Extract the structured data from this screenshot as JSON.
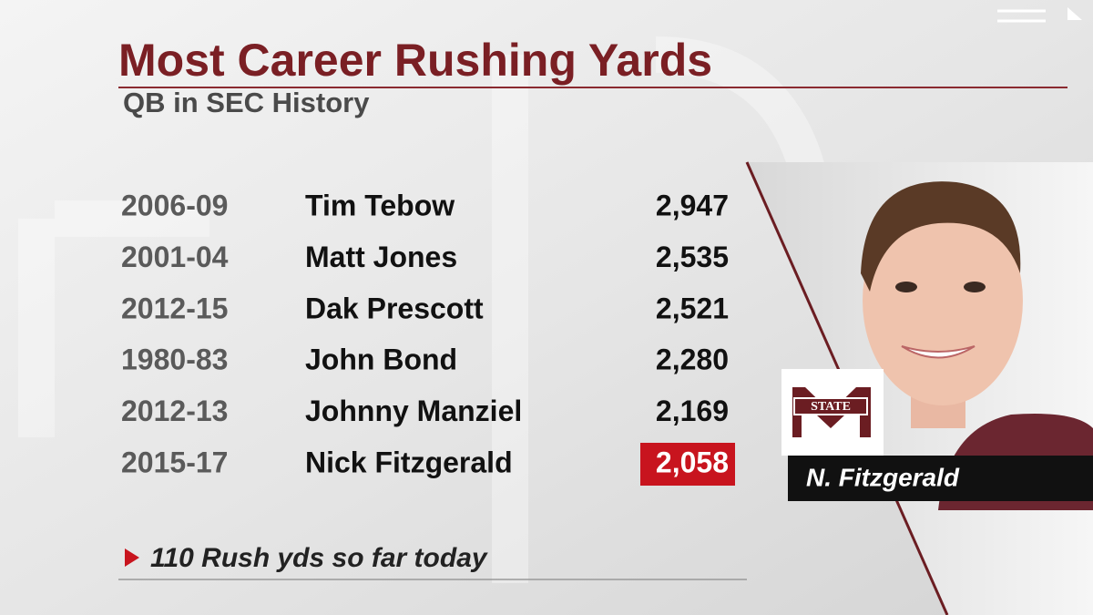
{
  "title": "Most Career Rushing Yards",
  "subtitle": "QB in SEC History",
  "table": {
    "rows": [
      [
        "2006-09",
        "Tim Tebow",
        "2,947"
      ],
      [
        "2001-04",
        "Matt Jones",
        "2,535"
      ],
      [
        "2012-15",
        "Dak Prescott",
        "2,521"
      ],
      [
        "1980-83",
        "John Bond",
        "2,280"
      ],
      [
        "2012-13",
        "Johnny Manziel",
        "2,169"
      ],
      [
        "2015-17",
        "Nick Fitzgerald",
        "2,058"
      ]
    ]
  },
  "highlight_row": 5,
  "footnote": "110 Rush yds so far today",
  "player": {
    "caption": "N. Fitzgerald",
    "logo_text": "STATE"
  }
}
